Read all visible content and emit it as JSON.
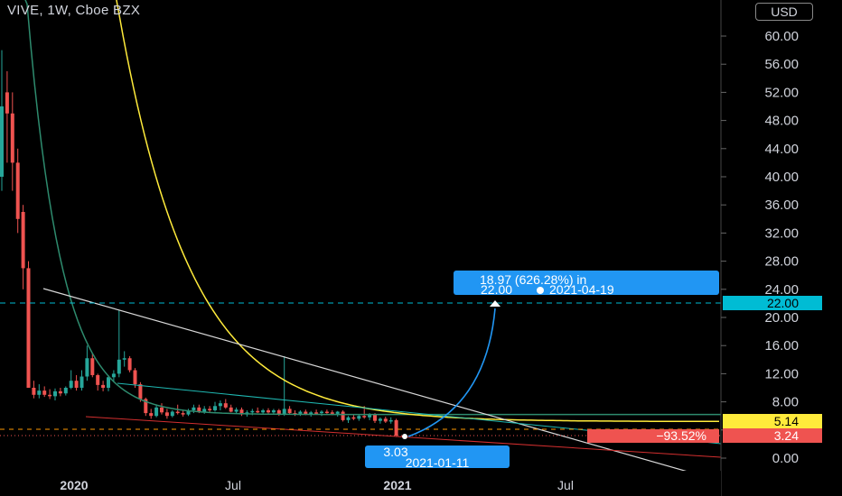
{
  "header": {
    "title": "VIVE, 1W, Cboe BZX",
    "currency_button": "USD"
  },
  "chart_data": {
    "type": "candlestick",
    "symbol": "VIVE",
    "interval": "1W",
    "exchange": "Cboe BZX",
    "currency": "USD",
    "y_ticks": [
      "60.00",
      "56.00",
      "52.00",
      "48.00",
      "44.00",
      "40.00",
      "36.00",
      "32.00",
      "28.00",
      "24.00",
      "20.00",
      "16.00",
      "12.00",
      "8.00",
      "4.00",
      "0.00"
    ],
    "x_ticks": [
      "2020",
      "Jul",
      "2021",
      "Jul"
    ],
    "ylim": [
      0,
      64
    ],
    "candles": [
      {
        "o": 40,
        "h": 58,
        "l": 38,
        "c": 50,
        "dir": "up"
      },
      {
        "o": 52,
        "h": 55,
        "l": 42,
        "c": 49,
        "dir": "down"
      },
      {
        "o": 49,
        "h": 52,
        "l": 38,
        "c": 42,
        "dir": "down"
      },
      {
        "o": 42,
        "h": 44,
        "l": 32,
        "c": 34,
        "dir": "down"
      },
      {
        "o": 35,
        "h": 36,
        "l": 24,
        "c": 27,
        "dir": "down"
      },
      {
        "o": 27,
        "h": 28,
        "l": 10,
        "c": 10,
        "dir": "down"
      },
      {
        "o": 10,
        "h": 11,
        "l": 8.5,
        "c": 9.0,
        "dir": "down"
      },
      {
        "o": 9.0,
        "h": 10.5,
        "l": 8.5,
        "c": 9.6,
        "dir": "up"
      },
      {
        "o": 9.6,
        "h": 10.2,
        "l": 8.7,
        "c": 9.0,
        "dir": "down"
      },
      {
        "o": 9.0,
        "h": 9.8,
        "l": 8.4,
        "c": 8.8,
        "dir": "down"
      },
      {
        "o": 8.8,
        "h": 9.9,
        "l": 8.2,
        "c": 9.5,
        "dir": "up"
      },
      {
        "o": 9.5,
        "h": 10.0,
        "l": 8.8,
        "c": 9.2,
        "dir": "down"
      },
      {
        "o": 9.2,
        "h": 10.2,
        "l": 8.9,
        "c": 10.0,
        "dir": "up"
      },
      {
        "o": 10.0,
        "h": 12.5,
        "l": 9.8,
        "c": 11.0,
        "dir": "up"
      },
      {
        "o": 11.0,
        "h": 11.8,
        "l": 9.6,
        "c": 10.0,
        "dir": "down"
      },
      {
        "o": 10.0,
        "h": 12.5,
        "l": 9.6,
        "c": 11.6,
        "dir": "up"
      },
      {
        "o": 11.6,
        "h": 16.0,
        "l": 11.0,
        "c": 14.2,
        "dir": "up"
      },
      {
        "o": 14.2,
        "h": 14.8,
        "l": 11.5,
        "c": 11.8,
        "dir": "down"
      },
      {
        "o": 11.8,
        "h": 12.0,
        "l": 9.6,
        "c": 10.4,
        "dir": "down"
      },
      {
        "o": 10.4,
        "h": 11.0,
        "l": 9.5,
        "c": 10.0,
        "dir": "down"
      },
      {
        "o": 10.0,
        "h": 11.8,
        "l": 9.5,
        "c": 11.5,
        "dir": "up"
      },
      {
        "o": 11.5,
        "h": 12.5,
        "l": 10.8,
        "c": 12.0,
        "dir": "up"
      },
      {
        "o": 12.0,
        "h": 21.0,
        "l": 11.5,
        "c": 14.0,
        "dir": "up"
      },
      {
        "o": 14.0,
        "h": 15.2,
        "l": 13.0,
        "c": 14.2,
        "dir": "up"
      },
      {
        "o": 14.2,
        "h": 14.5,
        "l": 12.2,
        "c": 12.5,
        "dir": "down"
      },
      {
        "o": 12.5,
        "h": 12.8,
        "l": 10.0,
        "c": 10.5,
        "dir": "down"
      },
      {
        "o": 10.5,
        "h": 10.8,
        "l": 8.0,
        "c": 8.4,
        "dir": "down"
      },
      {
        "o": 8.4,
        "h": 8.6,
        "l": 6.0,
        "c": 6.4,
        "dir": "down"
      },
      {
        "o": 6.4,
        "h": 7.0,
        "l": 5.6,
        "c": 6.0,
        "dir": "down"
      },
      {
        "o": 6.0,
        "h": 7.6,
        "l": 5.8,
        "c": 7.2,
        "dir": "up"
      },
      {
        "o": 7.2,
        "h": 7.8,
        "l": 6.2,
        "c": 6.5,
        "dir": "down"
      },
      {
        "o": 6.5,
        "h": 7.0,
        "l": 5.6,
        "c": 6.0,
        "dir": "down"
      },
      {
        "o": 6.0,
        "h": 6.8,
        "l": 5.8,
        "c": 6.6,
        "dir": "up"
      },
      {
        "o": 6.6,
        "h": 7.6,
        "l": 6.2,
        "c": 6.4,
        "dir": "down"
      },
      {
        "o": 6.4,
        "h": 6.8,
        "l": 5.9,
        "c": 6.2,
        "dir": "down"
      },
      {
        "o": 6.2,
        "h": 7.0,
        "l": 6.0,
        "c": 6.8,
        "dir": "up"
      },
      {
        "o": 6.8,
        "h": 7.6,
        "l": 6.4,
        "c": 7.2,
        "dir": "up"
      },
      {
        "o": 7.2,
        "h": 7.6,
        "l": 6.4,
        "c": 6.6,
        "dir": "down"
      },
      {
        "o": 6.6,
        "h": 7.4,
        "l": 6.3,
        "c": 7.0,
        "dir": "up"
      },
      {
        "o": 7.0,
        "h": 7.4,
        "l": 6.5,
        "c": 6.8,
        "dir": "down"
      },
      {
        "o": 6.8,
        "h": 8.0,
        "l": 6.6,
        "c": 7.4,
        "dir": "up"
      },
      {
        "o": 7.4,
        "h": 8.2,
        "l": 6.8,
        "c": 7.8,
        "dir": "up"
      },
      {
        "o": 7.8,
        "h": 8.4,
        "l": 7.0,
        "c": 7.2,
        "dir": "down"
      },
      {
        "o": 7.2,
        "h": 7.6,
        "l": 6.5,
        "c": 6.6,
        "dir": "down"
      },
      {
        "o": 6.6,
        "h": 7.2,
        "l": 6.3,
        "c": 6.9,
        "dir": "up"
      },
      {
        "o": 6.9,
        "h": 7.2,
        "l": 6.0,
        "c": 6.2,
        "dir": "down"
      },
      {
        "o": 6.2,
        "h": 6.8,
        "l": 5.9,
        "c": 6.5,
        "dir": "up"
      },
      {
        "o": 6.5,
        "h": 7.0,
        "l": 6.1,
        "c": 6.7,
        "dir": "up"
      },
      {
        "o": 6.7,
        "h": 7.2,
        "l": 6.4,
        "c": 6.5,
        "dir": "down"
      },
      {
        "o": 6.5,
        "h": 7.0,
        "l": 6.2,
        "c": 6.8,
        "dir": "up"
      },
      {
        "o": 6.8,
        "h": 7.1,
        "l": 6.3,
        "c": 6.5,
        "dir": "down"
      },
      {
        "o": 6.5,
        "h": 7.0,
        "l": 6.2,
        "c": 6.8,
        "dir": "up"
      },
      {
        "o": 6.8,
        "h": 7.0,
        "l": 6.0,
        "c": 6.2,
        "dir": "down"
      },
      {
        "o": 6.2,
        "h": 14.5,
        "l": 6.0,
        "c": 7.0,
        "dir": "up"
      },
      {
        "o": 7.0,
        "h": 7.4,
        "l": 6.2,
        "c": 6.4,
        "dir": "down"
      },
      {
        "o": 6.4,
        "h": 6.8,
        "l": 6.0,
        "c": 6.3,
        "dir": "down"
      },
      {
        "o": 6.3,
        "h": 6.8,
        "l": 6.0,
        "c": 6.6,
        "dir": "up"
      },
      {
        "o": 6.6,
        "h": 6.9,
        "l": 6.1,
        "c": 6.2,
        "dir": "down"
      },
      {
        "o": 6.2,
        "h": 6.7,
        "l": 5.9,
        "c": 6.5,
        "dir": "up"
      },
      {
        "o": 6.5,
        "h": 6.9,
        "l": 6.2,
        "c": 6.4,
        "dir": "down"
      },
      {
        "o": 6.4,
        "h": 6.8,
        "l": 6.0,
        "c": 6.6,
        "dir": "up"
      },
      {
        "o": 6.6,
        "h": 6.9,
        "l": 6.3,
        "c": 6.5,
        "dir": "down"
      },
      {
        "o": 6.5,
        "h": 6.8,
        "l": 6.1,
        "c": 6.3,
        "dir": "down"
      },
      {
        "o": 6.3,
        "h": 6.7,
        "l": 5.9,
        "c": 6.6,
        "dir": "up"
      },
      {
        "o": 6.6,
        "h": 6.8,
        "l": 5.2,
        "c": 5.4,
        "dir": "down"
      },
      {
        "o": 5.4,
        "h": 6.0,
        "l": 5.0,
        "c": 5.8,
        "dir": "up"
      },
      {
        "o": 5.8,
        "h": 6.2,
        "l": 5.4,
        "c": 5.6,
        "dir": "down"
      },
      {
        "o": 5.6,
        "h": 6.2,
        "l": 5.3,
        "c": 6.0,
        "dir": "up"
      },
      {
        "o": 6.0,
        "h": 7.4,
        "l": 5.6,
        "c": 5.8,
        "dir": "down"
      },
      {
        "o": 5.8,
        "h": 6.4,
        "l": 5.4,
        "c": 6.2,
        "dir": "up"
      },
      {
        "o": 6.2,
        "h": 6.4,
        "l": 5.0,
        "c": 5.3,
        "dir": "down"
      },
      {
        "o": 5.3,
        "h": 5.8,
        "l": 4.9,
        "c": 5.6,
        "dir": "up"
      },
      {
        "o": 5.6,
        "h": 5.9,
        "l": 5.0,
        "c": 5.2,
        "dir": "down"
      },
      {
        "o": 5.2,
        "h": 5.8,
        "l": 4.9,
        "c": 5.4,
        "dir": "up"
      },
      {
        "o": 5.4,
        "h": 5.6,
        "l": 3.0,
        "c": 3.2,
        "dir": "down"
      }
    ],
    "last_price": "3.24",
    "price_change_label": "−93.52%",
    "line_value_label": "5.14",
    "hline": {
      "value": 22.0,
      "label": "22.00"
    },
    "low_marker": {
      "price": "3.03",
      "date": "2021-01-11"
    },
    "projection": {
      "line1": "18.97 (626.28%) in",
      "line2": "22.00",
      "date": "2021-04-19"
    },
    "colors": {
      "up": "#26a69a",
      "down": "#ef5350",
      "ma_yellow": "#ffeb3b",
      "ma_green": "#2e8b6e",
      "trend": "#d8d8d8",
      "support": "#d32f2f",
      "channel": "#1fb9b3",
      "hline": "#00bcd4",
      "callout": "#2196f3"
    }
  }
}
